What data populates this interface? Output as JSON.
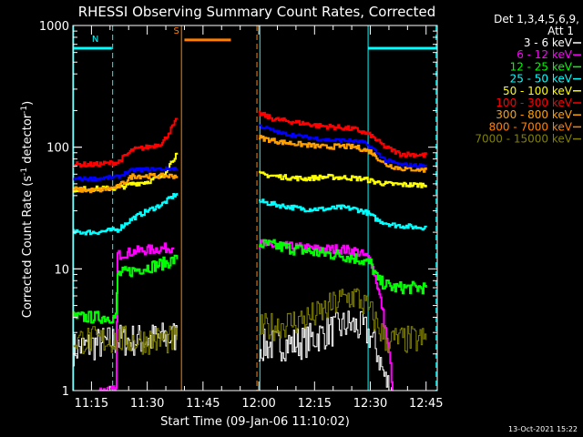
{
  "chart_data": {
    "type": "line",
    "title": "RHESSI Observing Summary Count Rates, Corrected",
    "xlabel": "Start Time (09-Jan-06 11:10:02)",
    "ylabel": "Corrected Count Rate (s⁻¹ detector⁻¹)",
    "ylabel_main": "Corrected Count Rate (s",
    "ylabel_sup1": "-1",
    "ylabel_mid": " detector",
    "ylabel_sup2": "-1",
    "ylabel_end": ")",
    "yscale": "log",
    "ylim": [
      1,
      1000
    ],
    "xlim": [
      "11:10",
      "12:48"
    ],
    "x_min": [
      670,
      768
    ],
    "x_ticks": [
      {
        "label": "11:15",
        "min": 675
      },
      {
        "label": "11:30",
        "min": 690
      },
      {
        "label": "11:45",
        "min": 705
      },
      {
        "label": "12:00",
        "min": 720
      },
      {
        "label": "12:15",
        "min": 735
      },
      {
        "label": "12:30",
        "min": 750
      },
      {
        "label": "12:45",
        "min": 765
      }
    ],
    "y_ticks": [
      {
        "label": "1",
        "v": 1
      },
      {
        "label": "10",
        "v": 10
      },
      {
        "label": "100",
        "v": 100
      },
      {
        "label": "1000",
        "v": 1000
      }
    ],
    "legend_header": [
      "Det 1,3,4,5,6,9,",
      "Att 1"
    ],
    "legend_position": "right, outside plot",
    "series": [
      {
        "name": "3 - 6 keV",
        "color": "#ffffff",
        "segments": [
          [
            [
              670,
              2.2
            ],
            [
              676,
              2.4
            ],
            [
              682,
              2.6
            ],
            [
              688,
              2.6
            ],
            [
              694,
              2.7
            ],
            [
              698,
              2.8
            ]
          ],
          [
            [
              720,
              2.3
            ],
            [
              726,
              2.4
            ],
            [
              732,
              2.5
            ],
            [
              738,
              3.0
            ],
            [
              744,
              3.5
            ],
            [
              748,
              3.2
            ],
            [
              750,
              2.8
            ],
            [
              752,
              2.0
            ],
            [
              754,
              1.2
            ],
            [
              756,
              1.0
            ]
          ]
        ],
        "noise": 0.14
      },
      {
        "name": "6 - 12 keV",
        "color": "#ff00ff",
        "segments": [
          [
            [
              677,
              1.0
            ],
            [
              681.5,
              1.0
            ],
            [
              682,
              13
            ],
            [
              687,
              14
            ],
            [
              692,
              14.5
            ],
            [
              697,
              15
            ]
          ],
          [
            [
              720,
              16
            ],
            [
              724,
              15.5
            ],
            [
              730,
              15
            ],
            [
              736,
              14.5
            ],
            [
              742,
              14.5
            ],
            [
              746,
              14
            ],
            [
              750,
              12
            ],
            [
              751.5,
              8
            ],
            [
              753,
              5
            ],
            [
              755,
              2
            ],
            [
              756,
              1.0
            ]
          ]
        ],
        "noise": 0.04
      },
      {
        "name": "12 - 25 keV",
        "color": "#00ff00",
        "segments": [
          [
            [
              670,
              4.0
            ],
            [
              681.5,
              4.0
            ],
            [
              682,
              9
            ],
            [
              688,
              10
            ],
            [
              694,
              11
            ],
            [
              698,
              12
            ]
          ],
          [
            [
              720,
              16
            ],
            [
              724,
              15.5
            ],
            [
              730,
              14.5
            ],
            [
              736,
              13.5
            ],
            [
              742,
              13
            ],
            [
              747,
              12
            ],
            [
              750,
              11
            ],
            [
              752,
              8
            ],
            [
              756,
              7
            ],
            [
              762,
              7
            ],
            [
              765,
              7
            ]
          ]
        ],
        "noise": 0.05
      },
      {
        "name": "25 - 50 keV",
        "color": "#00ffff",
        "segments": [
          [
            [
              670,
              20
            ],
            [
              676,
              20
            ],
            [
              682,
              21
            ],
            [
              686,
              26
            ],
            [
              690,
              30
            ],
            [
              694,
              34
            ],
            [
              698,
              42
            ]
          ],
          [
            [
              720,
              36
            ],
            [
              726,
              33
            ],
            [
              732,
              31
            ],
            [
              738,
              31
            ],
            [
              742,
              32
            ],
            [
              746,
              31
            ],
            [
              749,
              29
            ],
            [
              752,
              25
            ],
            [
              756,
              23
            ],
            [
              762,
              22
            ],
            [
              765,
              22
            ]
          ]
        ],
        "noise": 0.02
      },
      {
        "name": "50 - 100 keV",
        "color": "#ffff00",
        "segments": [
          [
            [
              670,
              45
            ],
            [
              682,
              46
            ],
            [
              686,
              50
            ],
            [
              690,
              52
            ],
            [
              694,
              58
            ],
            [
              698,
              90
            ]
          ],
          [
            [
              720,
              60
            ],
            [
              726,
              57
            ],
            [
              732,
              55
            ],
            [
              738,
              57
            ],
            [
              744,
              56
            ],
            [
              748,
              55
            ],
            [
              751,
              52
            ],
            [
              754,
              50
            ],
            [
              760,
              49
            ],
            [
              765,
              49
            ]
          ]
        ],
        "noise": 0.02
      },
      {
        "name": "100 - 300 keV",
        "color": "#ff0000",
        "segments": [
          [
            [
              670,
              72
            ],
            [
              676,
              72
            ],
            [
              682,
              75
            ],
            [
              686,
              95
            ],
            [
              690,
              100
            ],
            [
              694,
              108
            ],
            [
              698,
              170
            ]
          ],
          [
            [
              720,
              190
            ],
            [
              724,
              170
            ],
            [
              730,
              160
            ],
            [
              736,
              150
            ],
            [
              742,
              145
            ],
            [
              746,
              140
            ],
            [
              750,
              125
            ],
            [
              754,
              100
            ],
            [
              758,
              88
            ],
            [
              765,
              86
            ]
          ]
        ],
        "noise": 0.02
      },
      {
        "name": "300 - 800 keV",
        "color": "#ffa000",
        "segments": [
          [
            [
              670,
              45
            ],
            [
              676,
              44
            ],
            [
              682,
              47
            ],
            [
              686,
              58
            ],
            [
              690,
              58
            ],
            [
              694,
              58
            ],
            [
              698,
              58
            ]
          ],
          [
            [
              720,
              120
            ],
            [
              726,
              110
            ],
            [
              732,
              105
            ],
            [
              738,
              100
            ],
            [
              742,
              102
            ],
            [
              746,
              100
            ],
            [
              750,
              92
            ],
            [
              754,
              72
            ],
            [
              758,
              67
            ],
            [
              765,
              65
            ]
          ]
        ],
        "noise": 0.02
      },
      {
        "name": "800 - 7000 keV",
        "color": "#ff8000",
        "segments": [],
        "noise": 0
      },
      {
        "name": "7000 - 15000 keV",
        "color": "#808000",
        "segments": [
          [
            [
              670,
              2.6
            ],
            [
              698,
              2.6
            ]
          ],
          [
            [
              720,
              3.2
            ],
            [
              728,
              3.6
            ],
            [
              736,
              4.2
            ],
            [
              742,
              5.6
            ],
            [
              746,
              6.0
            ],
            [
              750,
              4.4
            ],
            [
              754,
              2.6
            ],
            [
              765,
              2.6
            ]
          ]
        ],
        "noise": 0.12
      },
      {
        "name": "",
        "color": "#0000ff",
        "segments": [
          [
            [
              670,
              55
            ],
            [
              676,
              55
            ],
            [
              682,
              57
            ],
            [
              686,
              65
            ],
            [
              690,
              66
            ],
            [
              694,
              66
            ],
            [
              698,
              67
            ]
          ],
          [
            [
              720,
              150
            ],
            [
              726,
              130
            ],
            [
              732,
              122
            ],
            [
              738,
              115
            ],
            [
              744,
              113
            ],
            [
              748,
              110
            ],
            [
              751,
              95
            ],
            [
              754,
              78
            ],
            [
              758,
              72
            ],
            [
              765,
              70
            ]
          ]
        ],
        "noise": 0.015
      }
    ],
    "intervals": [
      {
        "label": "N",
        "color": "#00ffff",
        "start": 670,
        "end": 680.5,
        "y": 650
      },
      {
        "label": "S",
        "color": "#ff8000",
        "start": 700,
        "end": 712.5,
        "y": 760
      },
      {
        "label": "",
        "color": "#00ffff",
        "start": 749.5,
        "end": 768,
        "y": 650
      }
    ],
    "vlines": [
      {
        "min": 670.2,
        "color": "#00ffff",
        "dashed": false
      },
      {
        "min": 680.7,
        "color": "#00ffff",
        "dashed": true
      },
      {
        "min": 699.2,
        "color": "#ff8000",
        "dashed": false
      },
      {
        "min": 719.5,
        "color": "#ff8000",
        "dashed": true
      },
      {
        "min": 720.3,
        "color": "#00ffff",
        "dashed": false
      },
      {
        "min": 749.4,
        "color": "#00ffff",
        "dashed": false
      },
      {
        "min": 767.7,
        "color": "#00ffff",
        "dashed": true
      }
    ],
    "timestamp": "13-Oct-2021 15:22"
  }
}
